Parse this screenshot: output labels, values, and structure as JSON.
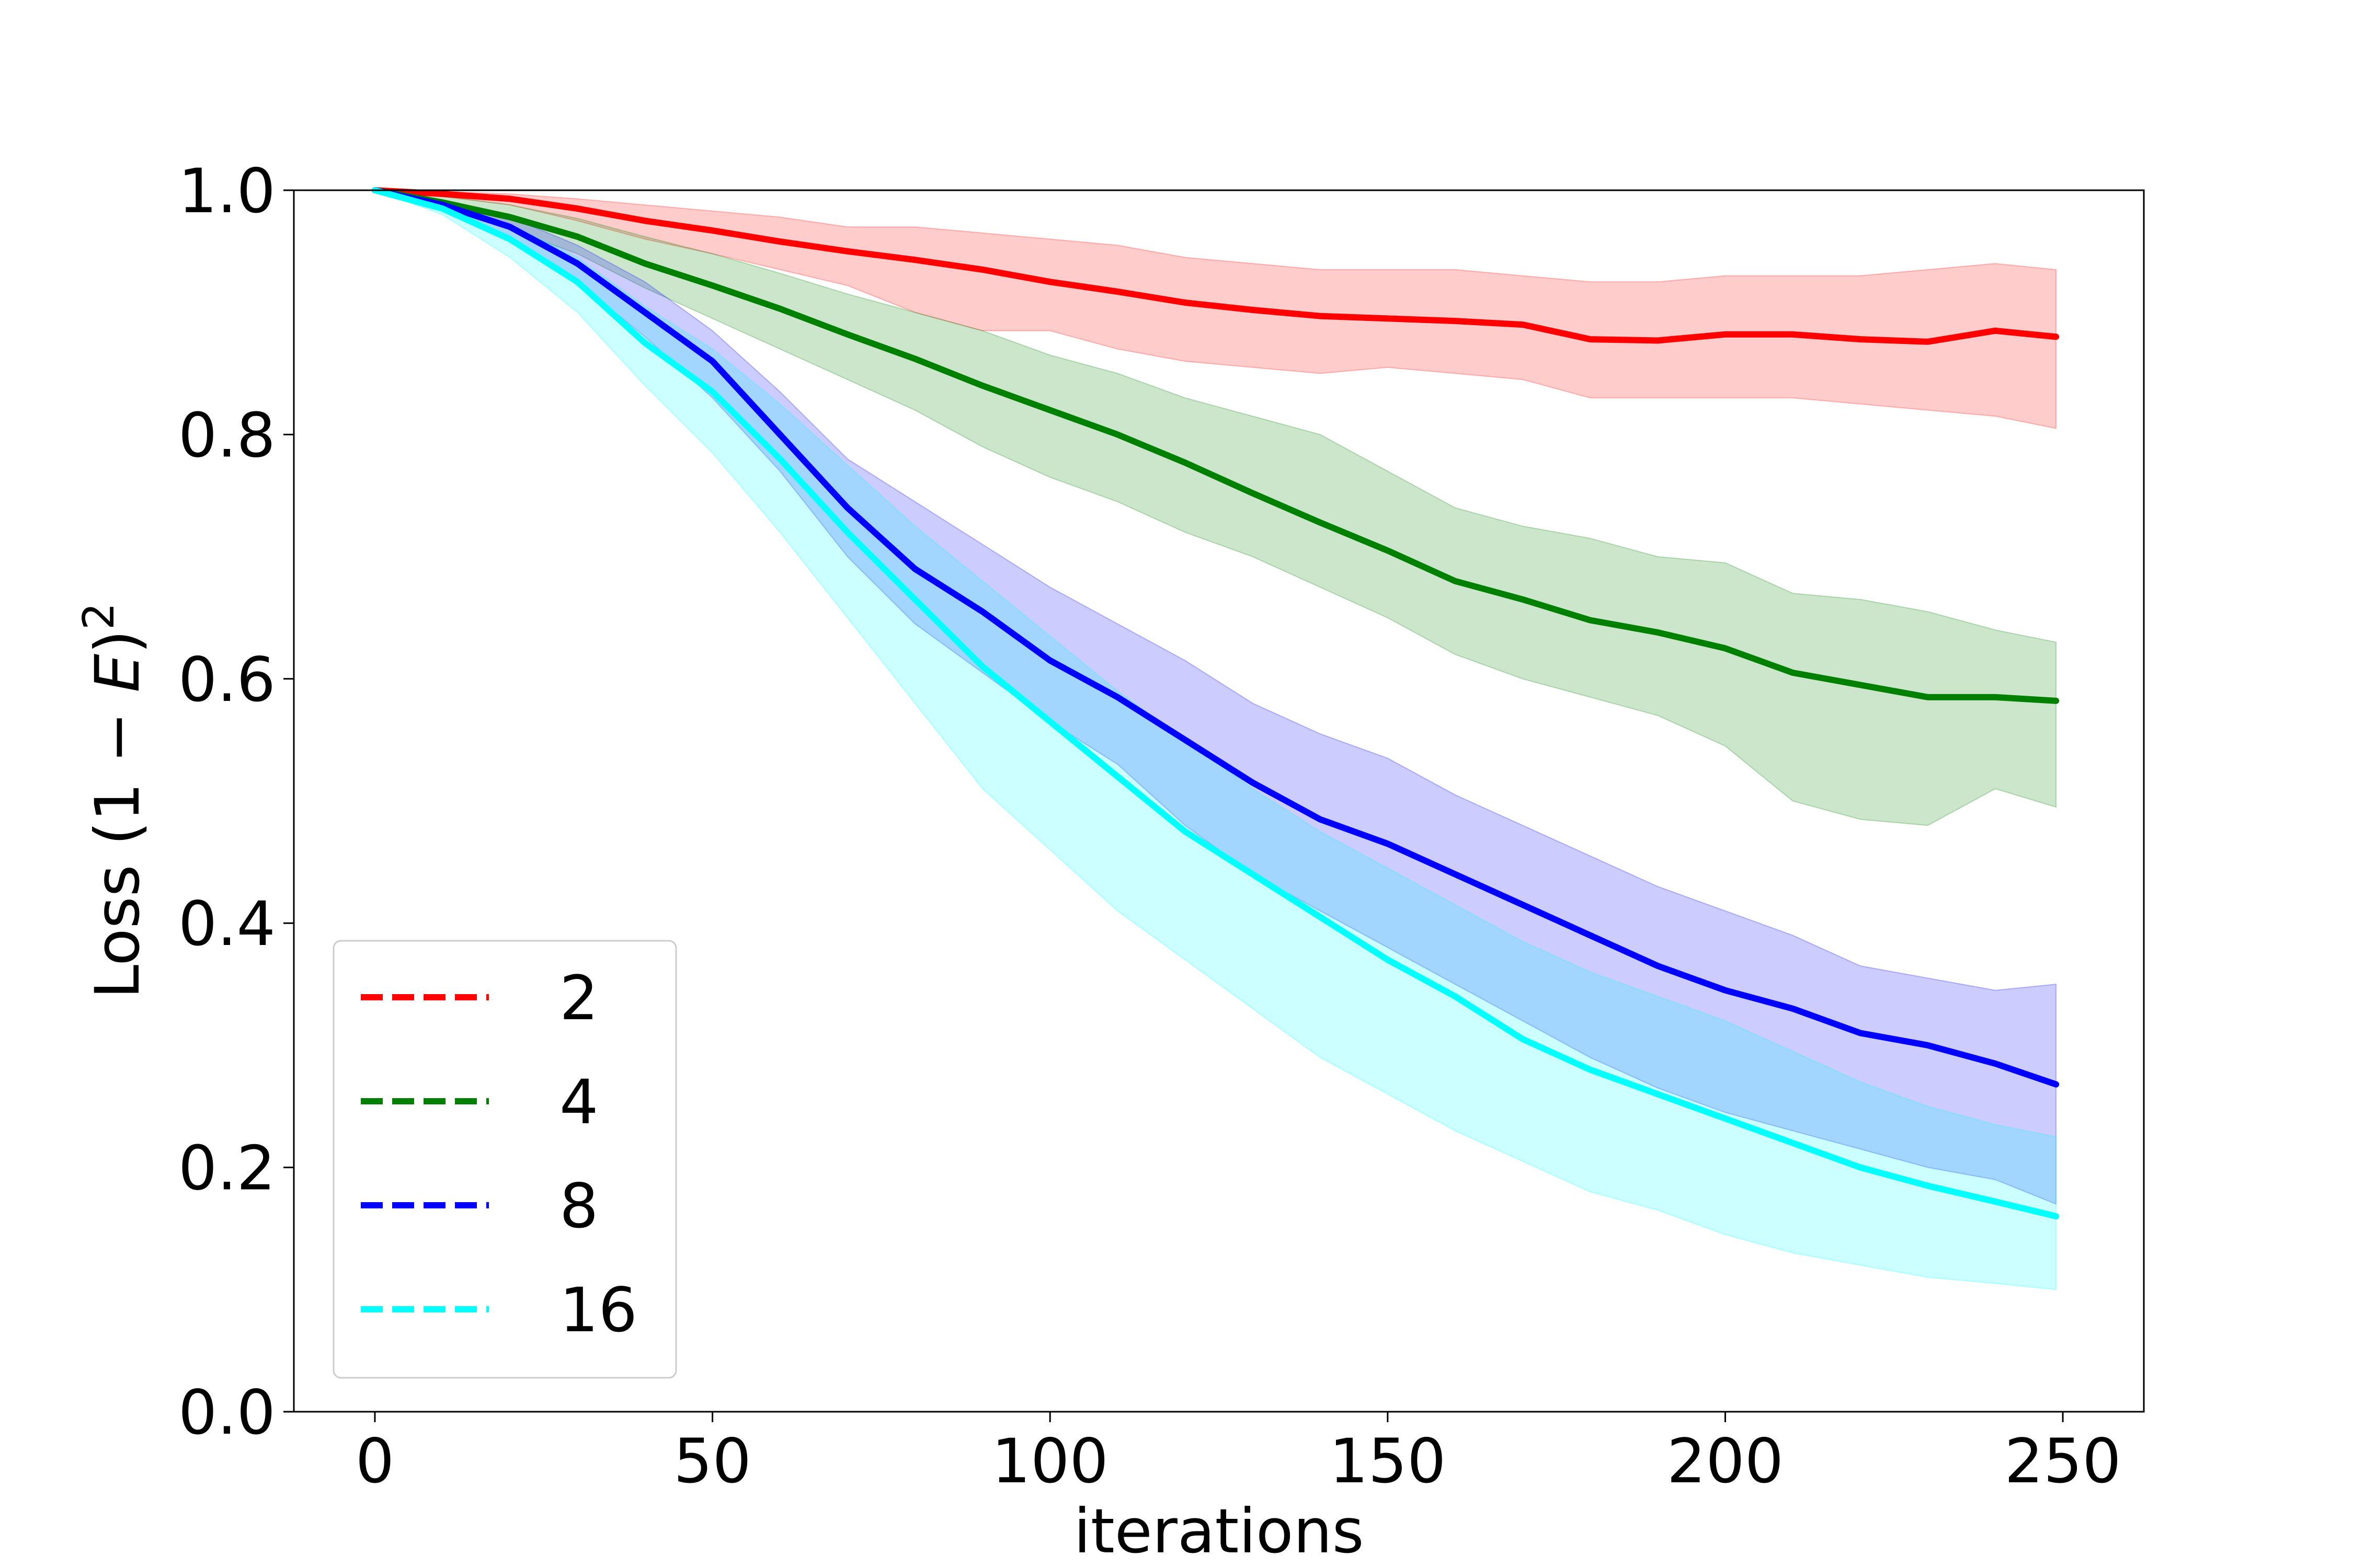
{
  "chart_data": {
    "type": "line",
    "xlabel": "iterations",
    "ylabel_parts": {
      "prefix": "Loss (1 − ",
      "var": "E",
      "suffix": ")",
      "exponent": "2"
    },
    "xlim": [
      -12,
      262
    ],
    "ylim": [
      0,
      1.0
    ],
    "xticks": [
      0,
      50,
      100,
      150,
      200,
      250
    ],
    "yticks": [
      0.0,
      0.2,
      0.4,
      0.6,
      0.8,
      1.0
    ],
    "xtick_labels": [
      "0",
      "50",
      "100",
      "150",
      "200",
      "250"
    ],
    "ytick_labels": [
      "0.0",
      "0.2",
      "0.4",
      "0.6",
      "0.8",
      "1.0"
    ],
    "grid": false,
    "legend_position": "lower-left",
    "legend_style": "dashed",
    "series": [
      {
        "name": "2",
        "color": "#ff0000",
        "x": [
          0,
          10,
          20,
          30,
          40,
          50,
          60,
          70,
          80,
          90,
          100,
          110,
          120,
          130,
          140,
          150,
          160,
          170,
          180,
          190,
          200,
          210,
          220,
          230,
          240,
          249
        ],
        "mean": [
          1.0,
          0.997,
          0.993,
          0.985,
          0.975,
          0.967,
          0.958,
          0.95,
          0.943,
          0.935,
          0.925,
          0.917,
          0.908,
          0.902,
          0.897,
          0.895,
          0.893,
          0.89,
          0.878,
          0.877,
          0.882,
          0.882,
          0.878,
          0.876,
          0.885,
          0.88
        ],
        "lower": [
          1.0,
          0.995,
          0.988,
          0.975,
          0.96,
          0.948,
          0.935,
          0.922,
          0.9,
          0.885,
          0.885,
          0.87,
          0.86,
          0.855,
          0.85,
          0.855,
          0.85,
          0.845,
          0.83,
          0.83,
          0.83,
          0.83,
          0.825,
          0.82,
          0.815,
          0.805
        ],
        "upper": [
          1.0,
          0.999,
          0.997,
          0.993,
          0.988,
          0.983,
          0.978,
          0.97,
          0.97,
          0.965,
          0.96,
          0.955,
          0.945,
          0.94,
          0.935,
          0.935,
          0.935,
          0.93,
          0.925,
          0.925,
          0.93,
          0.93,
          0.93,
          0.935,
          0.94,
          0.935
        ]
      },
      {
        "name": "4",
        "color": "#008000",
        "x": [
          0,
          10,
          20,
          30,
          40,
          50,
          60,
          70,
          80,
          90,
          100,
          110,
          120,
          130,
          140,
          150,
          160,
          170,
          180,
          190,
          200,
          210,
          220,
          230,
          240,
          249
        ],
        "mean": [
          1.0,
          0.99,
          0.978,
          0.962,
          0.94,
          0.922,
          0.903,
          0.882,
          0.862,
          0.84,
          0.82,
          0.8,
          0.777,
          0.752,
          0.728,
          0.705,
          0.68,
          0.665,
          0.648,
          0.638,
          0.625,
          0.605,
          0.595,
          0.585,
          0.585,
          0.582
        ],
        "lower": [
          1.0,
          0.985,
          0.968,
          0.948,
          0.92,
          0.895,
          0.87,
          0.845,
          0.82,
          0.79,
          0.765,
          0.745,
          0.72,
          0.7,
          0.675,
          0.65,
          0.62,
          0.6,
          0.585,
          0.57,
          0.545,
          0.5,
          0.485,
          0.48,
          0.51,
          0.495
        ],
        "upper": [
          1.0,
          0.995,
          0.988,
          0.977,
          0.962,
          0.948,
          0.932,
          0.915,
          0.9,
          0.885,
          0.865,
          0.85,
          0.83,
          0.815,
          0.8,
          0.77,
          0.74,
          0.725,
          0.715,
          0.7,
          0.695,
          0.67,
          0.665,
          0.655,
          0.64,
          0.63
        ]
      },
      {
        "name": "8",
        "color": "#0000ff",
        "x": [
          0,
          10,
          20,
          30,
          40,
          50,
          60,
          70,
          80,
          90,
          100,
          110,
          120,
          130,
          140,
          150,
          160,
          170,
          180,
          190,
          200,
          210,
          220,
          230,
          240,
          249
        ],
        "mean": [
          1.0,
          0.988,
          0.97,
          0.94,
          0.9,
          0.86,
          0.8,
          0.74,
          0.69,
          0.655,
          0.615,
          0.585,
          0.55,
          0.515,
          0.485,
          0.465,
          0.44,
          0.415,
          0.39,
          0.365,
          0.345,
          0.33,
          0.31,
          0.3,
          0.285,
          0.268
        ],
        "lower": [
          1.0,
          0.985,
          0.962,
          0.925,
          0.88,
          0.83,
          0.77,
          0.7,
          0.645,
          0.605,
          0.565,
          0.53,
          0.48,
          0.44,
          0.41,
          0.38,
          0.35,
          0.32,
          0.29,
          0.265,
          0.245,
          0.23,
          0.215,
          0.2,
          0.19,
          0.17
        ],
        "upper": [
          1.0,
          0.992,
          0.978,
          0.955,
          0.925,
          0.885,
          0.835,
          0.78,
          0.745,
          0.71,
          0.675,
          0.645,
          0.615,
          0.58,
          0.555,
          0.535,
          0.505,
          0.48,
          0.455,
          0.43,
          0.41,
          0.39,
          0.365,
          0.355,
          0.345,
          0.35
        ]
      },
      {
        "name": "16",
        "color": "#00ffff",
        "x": [
          0,
          10,
          20,
          30,
          40,
          50,
          60,
          70,
          80,
          90,
          100,
          110,
          120,
          130,
          140,
          150,
          160,
          170,
          180,
          190,
          200,
          210,
          220,
          230,
          240,
          249
        ],
        "mean": [
          1.0,
          0.985,
          0.96,
          0.925,
          0.875,
          0.835,
          0.78,
          0.72,
          0.665,
          0.61,
          0.565,
          0.52,
          0.475,
          0.44,
          0.405,
          0.37,
          0.34,
          0.305,
          0.28,
          0.26,
          0.24,
          0.22,
          0.2,
          0.185,
          0.172,
          0.16
        ],
        "lower": [
          1.0,
          0.98,
          0.945,
          0.9,
          0.84,
          0.785,
          0.72,
          0.65,
          0.58,
          0.51,
          0.46,
          0.41,
          0.37,
          0.33,
          0.29,
          0.26,
          0.23,
          0.205,
          0.18,
          0.165,
          0.145,
          0.13,
          0.12,
          0.11,
          0.105,
          0.1
        ],
        "upper": [
          1.0,
          0.99,
          0.972,
          0.945,
          0.905,
          0.87,
          0.825,
          0.775,
          0.725,
          0.68,
          0.635,
          0.59,
          0.55,
          0.51,
          0.475,
          0.445,
          0.415,
          0.385,
          0.36,
          0.34,
          0.32,
          0.295,
          0.27,
          0.25,
          0.235,
          0.225
        ]
      }
    ]
  }
}
